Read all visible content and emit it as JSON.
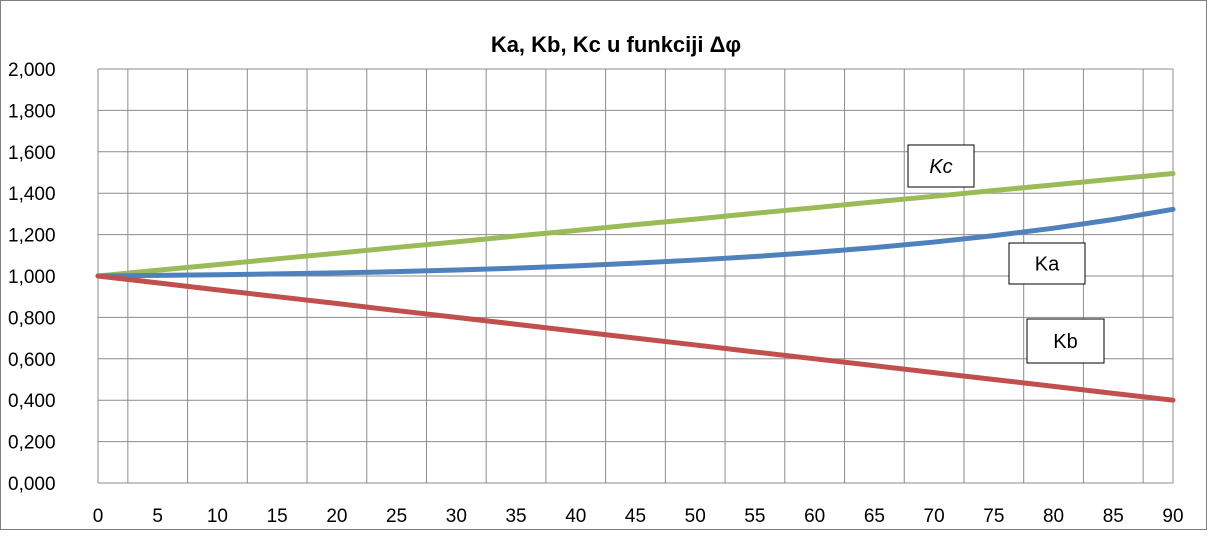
{
  "chart_data": {
    "type": "line",
    "title": "Ka, Kb, Kc  u funkciji  Δφ",
    "xlabel": "",
    "ylabel": "",
    "x": [
      0,
      5,
      10,
      15,
      20,
      25,
      30,
      35,
      40,
      45,
      50,
      55,
      60,
      65,
      70,
      75,
      80,
      85,
      90
    ],
    "x_tick_labels": [
      "0",
      "5",
      "10",
      "15",
      "20",
      "25",
      "30",
      "35",
      "40",
      "45",
      "50",
      "55",
      "60",
      "65",
      "70",
      "75",
      "80",
      "85",
      "90"
    ],
    "y_tick_values": [
      0,
      0.2,
      0.4,
      0.6,
      0.8,
      1.0,
      1.2,
      1.4,
      1.6,
      1.8,
      2.0
    ],
    "y_tick_labels": [
      "0,000",
      "0,200",
      "0,400",
      "0,600",
      "0,800",
      "1,000",
      "1,200",
      "1,400",
      "1,600",
      "1,800",
      "2,000"
    ],
    "xlim": [
      0,
      90
    ],
    "ylim": [
      0,
      2.0
    ],
    "grid": true,
    "series": [
      {
        "name": "Kc",
        "color": "#9BBB59",
        "values": [
          1.0,
          1.028,
          1.055,
          1.083,
          1.11,
          1.138,
          1.165,
          1.193,
          1.22,
          1.248,
          1.275,
          1.303,
          1.33,
          1.358,
          1.385,
          1.413,
          1.44,
          1.468,
          1.495
        ]
      },
      {
        "name": "Ka",
        "color": "#4F81BD",
        "values": [
          1.0,
          1.003,
          1.006,
          1.01,
          1.015,
          1.021,
          1.029,
          1.038,
          1.049,
          1.062,
          1.077,
          1.094,
          1.114,
          1.137,
          1.164,
          1.195,
          1.231,
          1.273,
          1.322
        ]
      },
      {
        "name": "Kb",
        "color": "#C0504D",
        "values": [
          1.0,
          0.967,
          0.933,
          0.9,
          0.867,
          0.833,
          0.8,
          0.767,
          0.733,
          0.7,
          0.667,
          0.633,
          0.6,
          0.567,
          0.533,
          0.5,
          0.467,
          0.433,
          0.4
        ]
      }
    ],
    "annotations": [
      {
        "text": "Kc",
        "italic": true,
        "series": "Kc"
      },
      {
        "text": "Ka",
        "italic": false,
        "series": "Ka"
      },
      {
        "text": "Kb",
        "italic": false,
        "series": "Kb"
      }
    ],
    "colors": {
      "grid": "#8c8c8c",
      "frame": "#7f7f7f",
      "label_box_border": "#000000"
    }
  }
}
